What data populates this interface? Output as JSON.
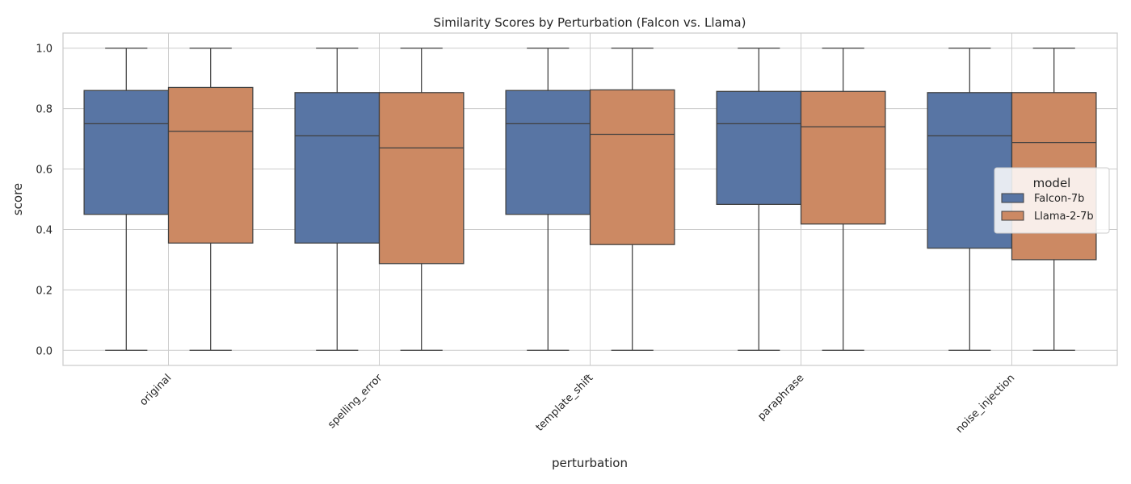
{
  "chart_data": {
    "type": "box",
    "title": "Similarity Scores by Perturbation (Falcon vs. Llama)",
    "xlabel": "perturbation",
    "ylabel": "score",
    "ylim": [
      -0.05,
      1.05
    ],
    "yticks": [
      0.0,
      0.2,
      0.4,
      0.6,
      0.8,
      1.0
    ],
    "ytick_labels": [
      "0.0",
      "0.2",
      "0.4",
      "0.6",
      "0.8",
      "1.0"
    ],
    "grid": true,
    "categories": [
      "original",
      "spelling_error",
      "template_shift",
      "paraphrase",
      "noise_injection"
    ],
    "legend": {
      "title": "model",
      "placement": "center-right"
    },
    "series": [
      {
        "name": "Falcon-7b",
        "color": "#5875a4",
        "boxes": [
          {
            "whisker_low": 0.0,
            "q1": 0.45,
            "median": 0.75,
            "q3": 0.86,
            "whisker_high": 1.0
          },
          {
            "whisker_low": 0.0,
            "q1": 0.355,
            "median": 0.71,
            "q3": 0.853,
            "whisker_high": 1.0
          },
          {
            "whisker_low": 0.0,
            "q1": 0.45,
            "median": 0.75,
            "q3": 0.86,
            "whisker_high": 1.0
          },
          {
            "whisker_low": 0.0,
            "q1": 0.483,
            "median": 0.75,
            "q3": 0.857,
            "whisker_high": 1.0
          },
          {
            "whisker_low": 0.0,
            "q1": 0.338,
            "median": 0.71,
            "q3": 0.853,
            "whisker_high": 1.0
          }
        ]
      },
      {
        "name": "Llama-2-7b",
        "color": "#cc8963",
        "boxes": [
          {
            "whisker_low": 0.0,
            "q1": 0.355,
            "median": 0.725,
            "q3": 0.87,
            "whisker_high": 1.0
          },
          {
            "whisker_low": 0.0,
            "q1": 0.287,
            "median": 0.67,
            "q3": 0.853,
            "whisker_high": 1.0
          },
          {
            "whisker_low": 0.0,
            "q1": 0.35,
            "median": 0.715,
            "q3": 0.862,
            "whisker_high": 1.0
          },
          {
            "whisker_low": 0.0,
            "q1": 0.418,
            "median": 0.74,
            "q3": 0.857,
            "whisker_high": 1.0
          },
          {
            "whisker_low": 0.0,
            "q1": 0.3,
            "median": 0.688,
            "q3": 0.853,
            "whisker_high": 1.0
          }
        ]
      }
    ]
  }
}
